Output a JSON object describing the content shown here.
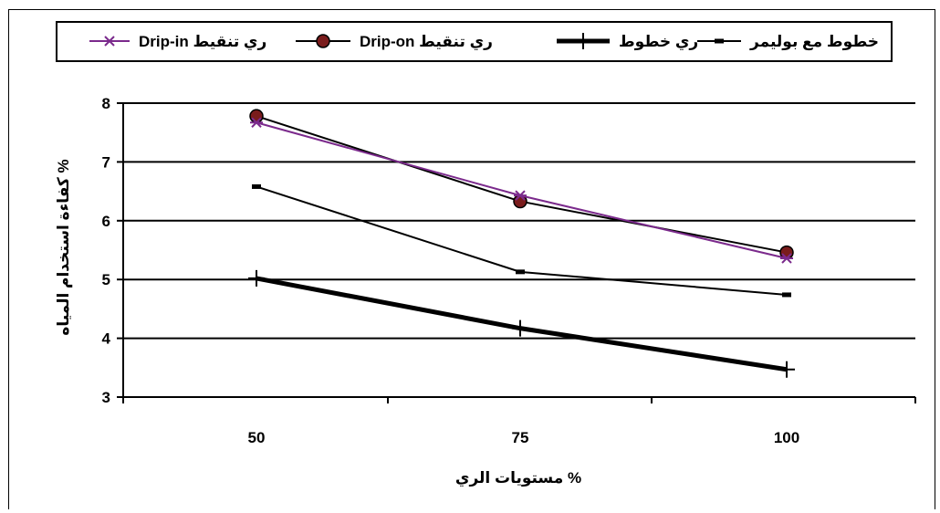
{
  "chart_data": {
    "type": "line",
    "x": [
      50,
      75,
      100
    ],
    "categories": [
      "50",
      "75",
      "100"
    ],
    "ylim": [
      3,
      8
    ],
    "yticks": [
      "3",
      "4",
      "5",
      "6",
      "7",
      "8"
    ],
    "grid": "horizontal",
    "legend": "top",
    "xlabel": "مستويات الري %",
    "ylabel": "كفاءة استخدام المياه %",
    "series": [
      {
        "name": "Drip-in ري تنقيط",
        "values": [
          7.67,
          6.43,
          5.36
        ],
        "color": "#7b2a8c",
        "marker": "star",
        "width": 2
      },
      {
        "name": "Drip-on ري تنقيط",
        "values": [
          7.78,
          6.33,
          5.46
        ],
        "color": "#000000",
        "marker": "circle",
        "markerColor": "#7a1c1c",
        "width": 2
      },
      {
        "name": "ري خطوط",
        "values": [
          5.02,
          4.17,
          3.47
        ],
        "color": "#000000",
        "marker": "plus",
        "width": 5
      },
      {
        "name": "خطوط مع بوليمر",
        "values": [
          6.58,
          5.13,
          4.74
        ],
        "color": "#000000",
        "marker": "dash",
        "width": 2
      }
    ]
  }
}
